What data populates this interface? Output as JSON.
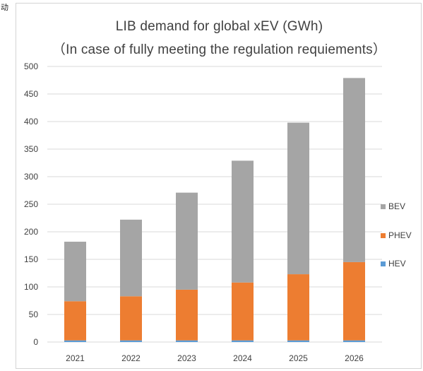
{
  "corner_text": "动",
  "chart_data": {
    "type": "bar",
    "stacked": true,
    "title": "LIB demand for global xEV (GWh)",
    "subtitle": "（In case of fully meeting the regulation requiements）",
    "categories": [
      "2021",
      "2022",
      "2023",
      "2024",
      "2025",
      "2026"
    ],
    "series": [
      {
        "name": "HEV",
        "color": "#5b9bd5",
        "values": [
          3,
          3,
          3,
          3,
          3,
          3
        ]
      },
      {
        "name": "PHEV",
        "color": "#ed7d31",
        "values": [
          71,
          80,
          92,
          105,
          120,
          142
        ]
      },
      {
        "name": "BEV",
        "color": "#a5a5a5",
        "values": [
          108,
          139,
          176,
          221,
          275,
          334
        ]
      }
    ],
    "ylim": [
      0,
      500
    ],
    "yticks": [
      "0",
      "50",
      "100",
      "150",
      "200",
      "250",
      "300",
      "350",
      "400",
      "450",
      "500"
    ],
    "grid": true,
    "legend": {
      "position": "right",
      "order": [
        "BEV",
        "PHEV",
        "HEV"
      ]
    }
  }
}
